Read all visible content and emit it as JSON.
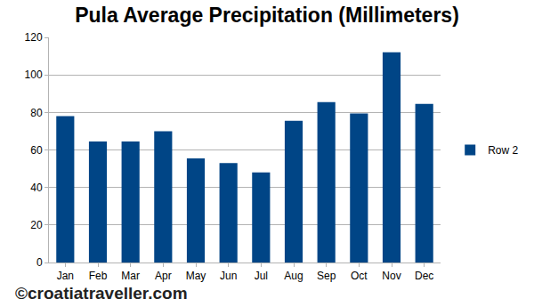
{
  "chart_data": {
    "type": "bar",
    "title": "Pula Average Precipitation (Millimeters)",
    "categories": [
      "Jan",
      "Feb",
      "Mar",
      "Apr",
      "May",
      "Jun",
      "Jul",
      "Aug",
      "Sep",
      "Oct",
      "Nov",
      "Dec"
    ],
    "series": [
      {
        "name": "Row 2",
        "color": "#004586",
        "values": [
          78,
          64.5,
          64.5,
          70,
          55.5,
          53,
          48,
          75.5,
          85.5,
          79.5,
          112,
          84.5
        ]
      }
    ],
    "ylim": [
      0,
      120
    ],
    "yticks": [
      0,
      20,
      40,
      60,
      80,
      100,
      120
    ],
    "grid": true,
    "legend": "right",
    "annotation": "©croatiatraveller.com"
  }
}
